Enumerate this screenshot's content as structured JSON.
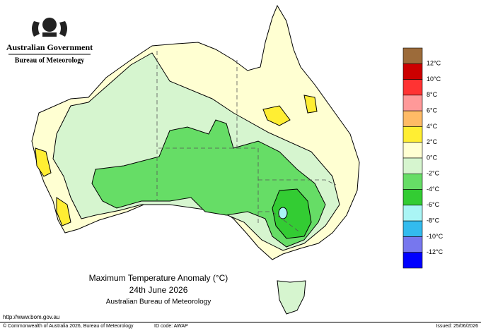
{
  "header": {
    "government": "Australian Government",
    "bureau": "Bureau of Meteorology"
  },
  "legend": {
    "labels": [
      "12°C",
      "10°C",
      "8°C",
      "6°C",
      "4°C",
      "2°C",
      "0°C",
      "-2°C",
      "-4°C",
      "-6°C",
      "-8°C",
      "-10°C",
      "-12°C"
    ],
    "colors": [
      "#9c6b3a",
      "#cc0000",
      "#ff3333",
      "#ff9999",
      "#ffbb66",
      "#ffee33",
      "#ffffd2",
      "#d6f5cf",
      "#66dd66",
      "#33cc33",
      "#aaf5f5",
      "#33bbee",
      "#7777ee",
      "#0000ff"
    ]
  },
  "title": {
    "line1": "Maximum Temperature Anomaly (°C)",
    "line2": "24th June 2026",
    "line3": "Australian Bureau of Meteorology"
  },
  "footer": {
    "url": "http://www.bom.gov.au",
    "copyright": "© Commonwealth of Australia 2026, Bureau of Meteorology",
    "id_code": "ID code: AWAP",
    "issued": "Issued: 25/06/2026"
  }
}
